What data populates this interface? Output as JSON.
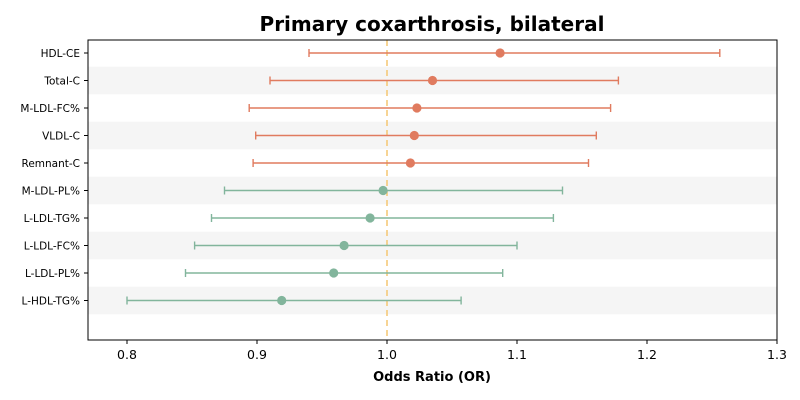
{
  "chart_data": {
    "type": "forest",
    "title": "Primary coxarthrosis, bilateral",
    "xlabel": "Odds Ratio (OR)",
    "xlim": [
      0.77,
      1.3
    ],
    "xticks": [
      0.8,
      0.9,
      1.0,
      1.1,
      1.2,
      1.3
    ],
    "xtick_labels": [
      "0.8",
      "0.9",
      "1.0",
      "1.1",
      "1.2",
      "1.3"
    ],
    "reference_line": 1.0,
    "reference_color": "#f5c97a",
    "colors": {
      "positive": "#e07b5f",
      "negative": "#82b59c",
      "band": "#f5f5f5"
    },
    "points": [
      {
        "label": "HDL-CE",
        "or": 1.087,
        "lower": 0.94,
        "upper": 1.256
      },
      {
        "label": "Total-C",
        "or": 1.035,
        "lower": 0.91,
        "upper": 1.178
      },
      {
        "label": "M-LDL-FC%",
        "or": 1.023,
        "lower": 0.894,
        "upper": 1.172
      },
      {
        "label": "VLDL-C",
        "or": 1.021,
        "lower": 0.899,
        "upper": 1.161
      },
      {
        "label": "Remnant-C",
        "or": 1.018,
        "lower": 0.897,
        "upper": 1.155
      },
      {
        "label": "M-LDL-PL%",
        "or": 0.997,
        "lower": 0.875,
        "upper": 1.135
      },
      {
        "label": "L-LDL-TG%",
        "or": 0.987,
        "lower": 0.865,
        "upper": 1.128
      },
      {
        "label": "L-LDL-FC%",
        "or": 0.967,
        "lower": 0.852,
        "upper": 1.1
      },
      {
        "label": "L-LDL-PL%",
        "or": 0.959,
        "lower": 0.845,
        "upper": 1.089
      },
      {
        "label": "L-HDL-TG%",
        "or": 0.919,
        "lower": 0.8,
        "upper": 1.057
      }
    ]
  }
}
